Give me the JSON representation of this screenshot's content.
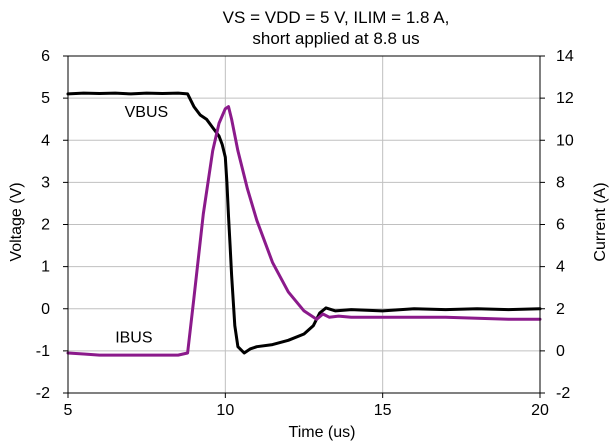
{
  "chart_data": {
    "type": "line",
    "title": [
      "VS = VDD = 5 V, ILIM = 1.8 A,",
      "short applied at 8.8 us"
    ],
    "xlabel": "Time (us)",
    "ylabel": "Voltage (V)",
    "y2label": "Current (A)",
    "xlim": [
      5,
      20
    ],
    "ylim": [
      -2,
      6
    ],
    "y2lim": [
      -2,
      14
    ],
    "xticks": [
      5,
      10,
      15,
      20
    ],
    "yticks": [
      -2,
      -1,
      0,
      1,
      2,
      3,
      4,
      5,
      6
    ],
    "y2ticks": [
      -2,
      0,
      2,
      4,
      6,
      8,
      10,
      12,
      14
    ],
    "grid": true,
    "series": [
      {
        "name": "VBUS",
        "axis": "left",
        "color": "#000000",
        "x": [
          5.0,
          5.5,
          6.0,
          6.5,
          7.0,
          7.5,
          8.0,
          8.5,
          8.8,
          9.0,
          9.2,
          9.4,
          9.6,
          9.8,
          9.9,
          10.0,
          10.05,
          10.1,
          10.15,
          10.2,
          10.25,
          10.3,
          10.4,
          10.6,
          10.8,
          11.0,
          11.5,
          12.0,
          12.5,
          12.8,
          13.0,
          13.2,
          13.5,
          14.0,
          15.0,
          16.0,
          17.0,
          18.0,
          19.0,
          20.0
        ],
        "values": [
          5.1,
          5.12,
          5.11,
          5.12,
          5.1,
          5.12,
          5.11,
          5.12,
          5.1,
          4.8,
          4.6,
          4.5,
          4.3,
          4.1,
          3.9,
          3.6,
          3.0,
          2.2,
          1.5,
          0.8,
          0.2,
          -0.4,
          -0.9,
          -1.05,
          -0.95,
          -0.9,
          -0.85,
          -0.75,
          -0.6,
          -0.4,
          -0.1,
          0.02,
          -0.05,
          -0.02,
          -0.05,
          0.0,
          -0.02,
          0.0,
          -0.02,
          0.0
        ],
        "label_at": [
          6.8,
          4.55
        ]
      },
      {
        "name": "IBUS",
        "axis": "right",
        "color": "#8b1a8b",
        "x": [
          5.0,
          5.5,
          6.0,
          6.5,
          7.0,
          7.5,
          8.0,
          8.5,
          8.8,
          9.0,
          9.3,
          9.6,
          9.8,
          10.0,
          10.1,
          10.2,
          10.4,
          10.7,
          11.0,
          11.5,
          12.0,
          12.5,
          12.9,
          13.1,
          13.3,
          13.6,
          14.0,
          15.0,
          16.0,
          17.0,
          18.0,
          19.0,
          20.0
        ],
        "values": [
          -0.1,
          -0.15,
          -0.2,
          -0.2,
          -0.2,
          -0.2,
          -0.2,
          -0.2,
          -0.1,
          2.5,
          6.5,
          9.5,
          10.8,
          11.5,
          11.6,
          11.0,
          9.5,
          7.7,
          6.2,
          4.2,
          2.8,
          1.9,
          1.5,
          1.75,
          1.6,
          1.65,
          1.6,
          1.6,
          1.6,
          1.6,
          1.55,
          1.5,
          1.5
        ],
        "label_at": [
          6.5,
          -0.8
        ]
      }
    ]
  }
}
